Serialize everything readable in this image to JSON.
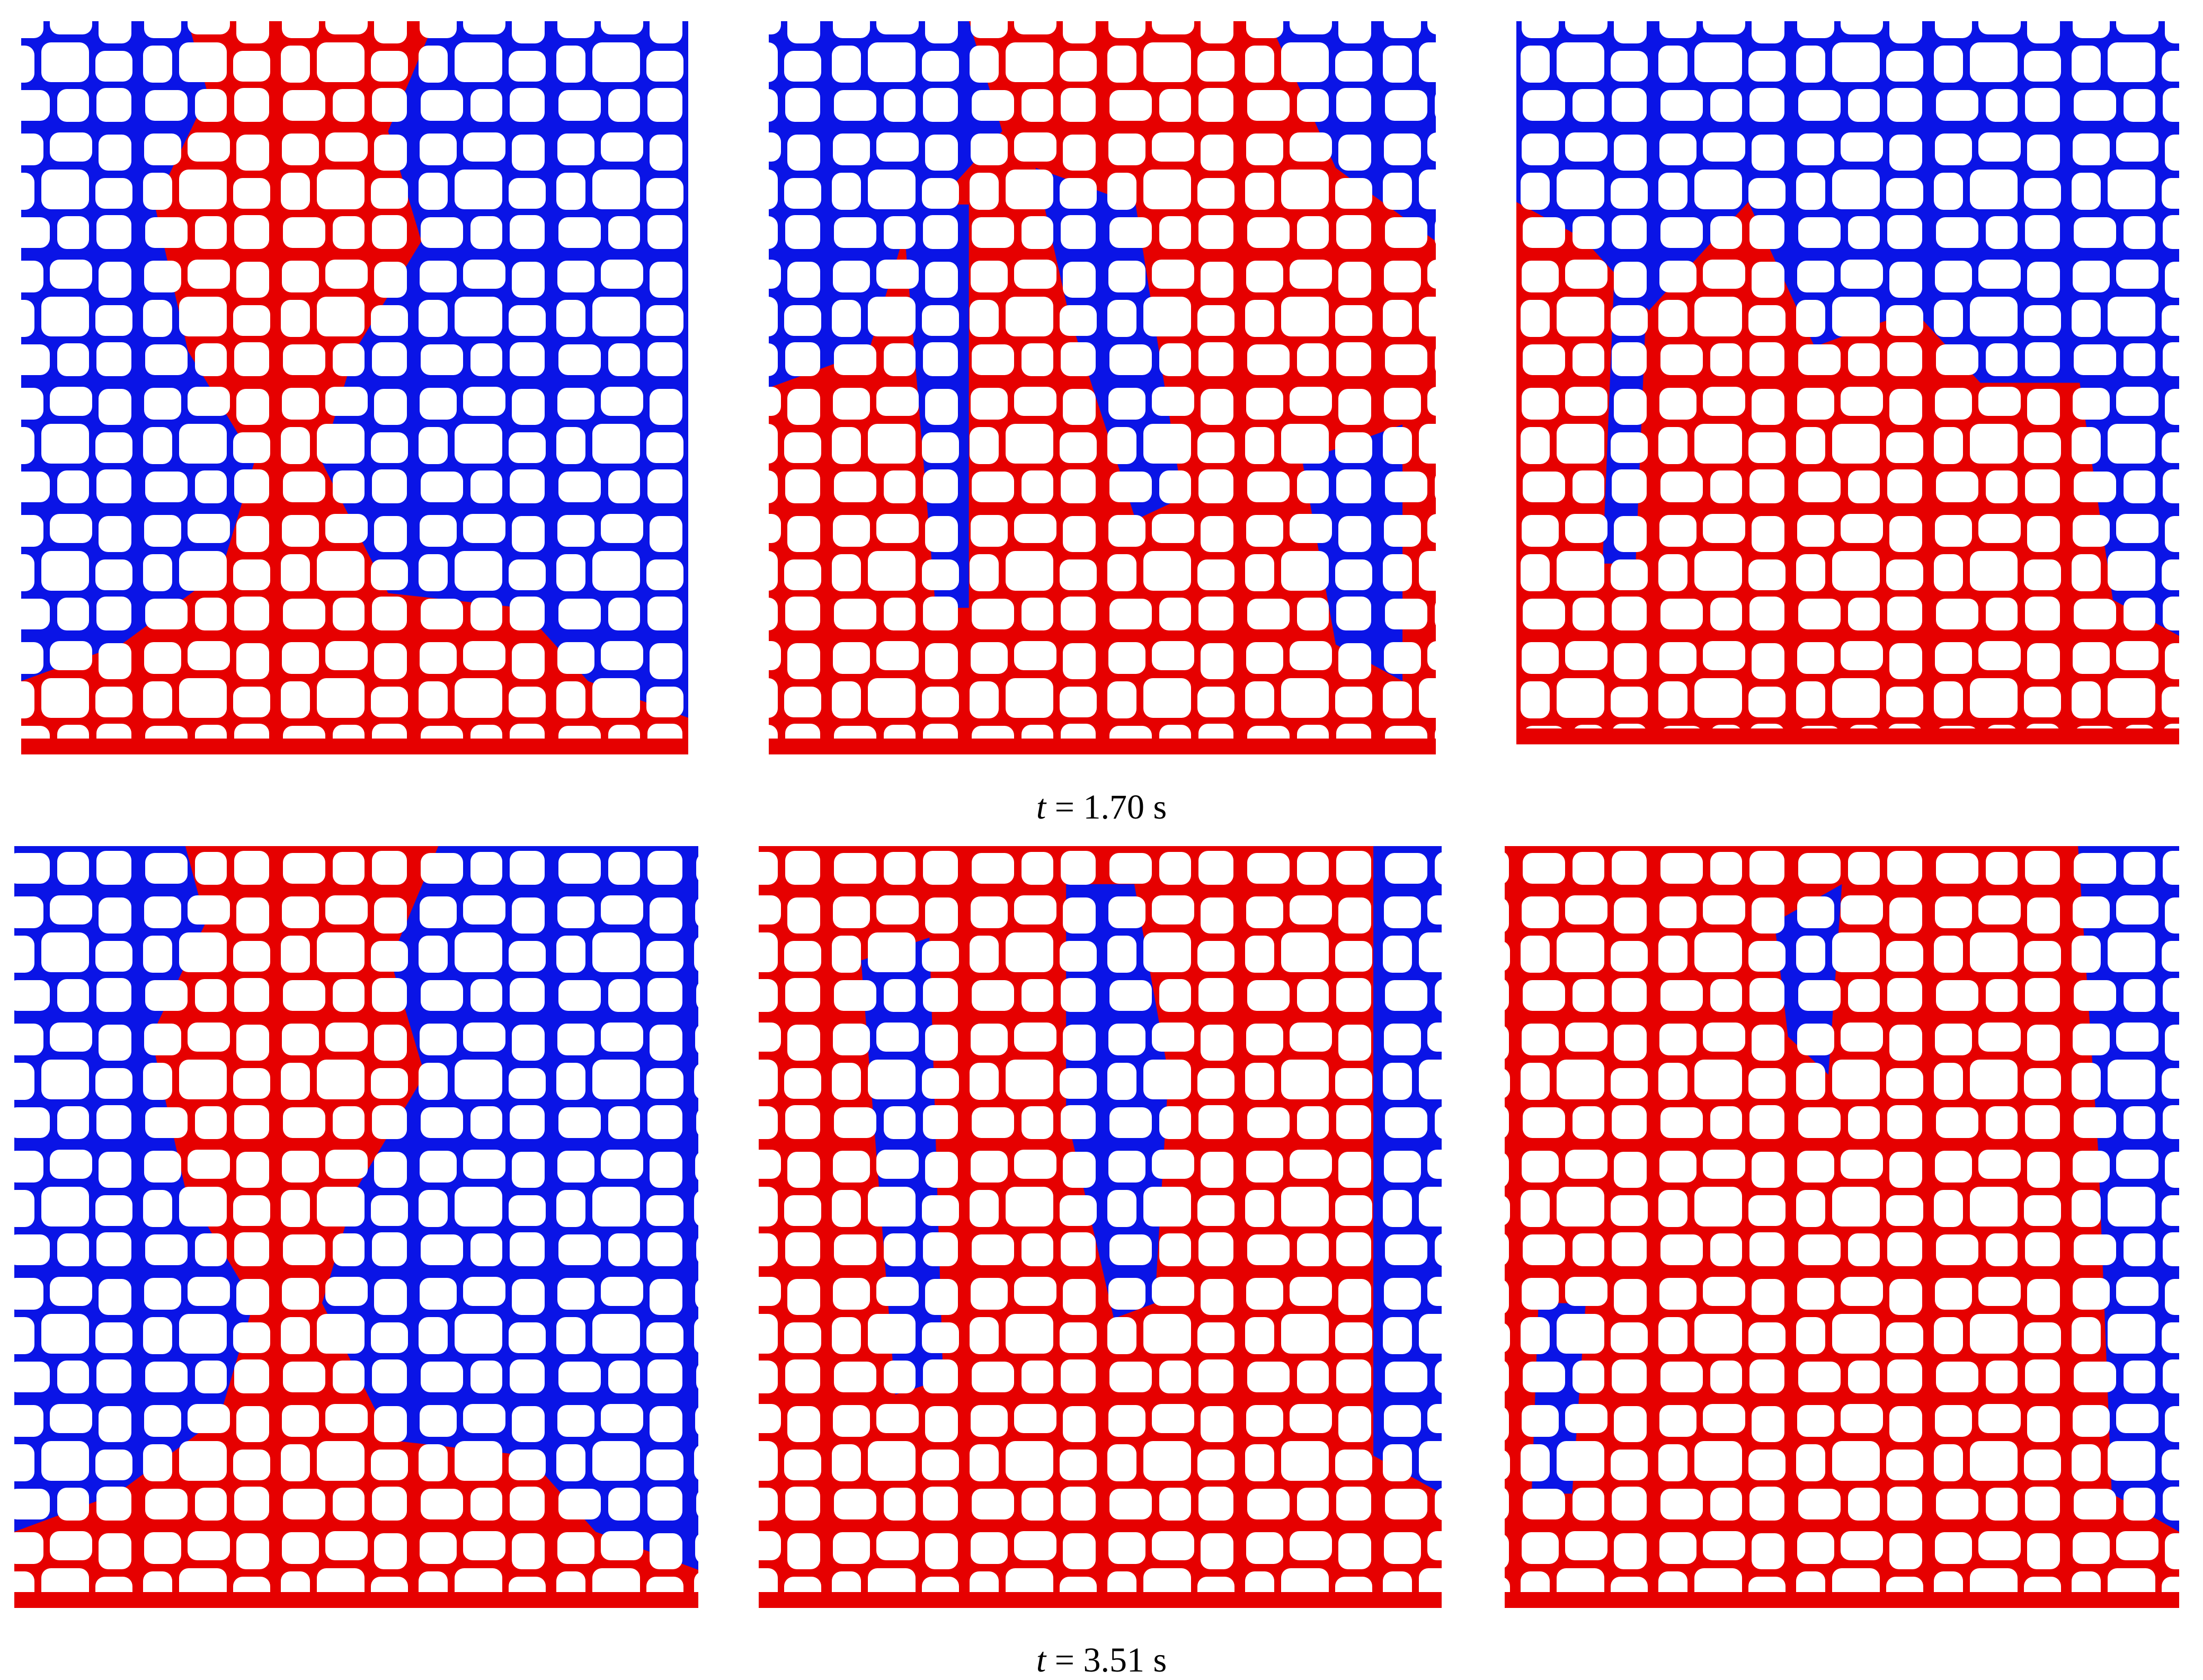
{
  "figure": {
    "rows": [
      {
        "caption": {
          "variable": "t",
          "text": "= 1.70 s"
        }
      },
      {
        "caption": {
          "variable": "t",
          "text": "= 3.51 s"
        }
      }
    ]
  }
}
